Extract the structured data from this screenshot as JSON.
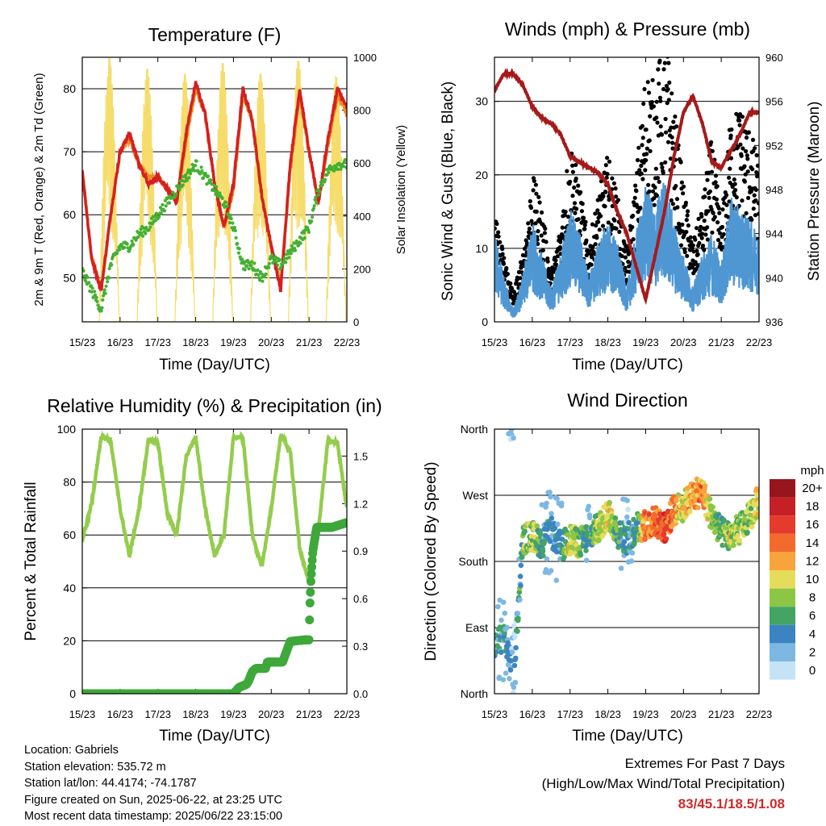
{
  "colors": {
    "temp_red": "#d42020",
    "temp_orange": "#f08c24",
    "dew_green": "#44b032",
    "solar_yellow": "#f6dc6a",
    "gust_black": "#000000",
    "wind_blue": "#4f97d3",
    "pressure_maroon": "#a61a1a",
    "rh_green": "#94cc4c",
    "precip_green": "#3ea83a",
    "extremes_red": "#cc2a2a"
  },
  "time_ticks": [
    "15/23",
    "16/23",
    "17/23",
    "18/23",
    "19/23",
    "20/23",
    "21/23",
    "22/23"
  ],
  "chart_data": [
    {
      "id": "temperature",
      "type": "line",
      "title": "Temperature (F)",
      "xlabel": "Time (Day/UTC)",
      "ylabel": "2m & 9m T (Red, Orange) & 2m Td (Green)",
      "y2label": "Solar Insolation (Yellow)",
      "x_range_days": [
        0,
        7
      ],
      "ylim": [
        43,
        85
      ],
      "y_ticks": [
        50,
        60,
        70,
        80
      ],
      "y2lim": [
        0,
        1000
      ],
      "y2_ticks": [
        0,
        200,
        400,
        600,
        800,
        1000
      ],
      "grid": "horizontal",
      "x": [
        0,
        0.25,
        0.5,
        0.75,
        1,
        1.25,
        1.5,
        1.75,
        2,
        2.25,
        2.5,
        2.75,
        3,
        3.25,
        3.5,
        3.75,
        4,
        4.25,
        4.5,
        4.75,
        5,
        5.25,
        5.5,
        5.75,
        6,
        6.25,
        6.5,
        6.75,
        7
      ],
      "series": [
        {
          "name": "2m T",
          "values": [
            67,
            53,
            48,
            60,
            70,
            73,
            68,
            65,
            66,
            64,
            62,
            73,
            81,
            76,
            65,
            58,
            65,
            80,
            75,
            63,
            55,
            48,
            68,
            80,
            70,
            62,
            72,
            80,
            77
          ]
        },
        {
          "name": "9m T",
          "values": [
            67,
            53,
            48,
            60,
            70,
            72,
            68,
            66,
            66,
            64,
            62,
            72,
            80,
            76,
            65,
            58,
            64,
            79,
            75,
            63,
            55,
            49,
            67,
            79,
            70,
            62,
            71,
            79,
            76
          ]
        },
        {
          "name": "2m Td",
          "values": [
            51,
            48,
            45,
            52,
            55,
            55,
            57,
            58,
            60,
            62,
            64,
            66,
            68,
            66,
            64,
            62,
            58,
            52,
            52,
            50,
            53,
            52,
            54,
            56,
            58,
            64,
            67,
            68,
            68
          ]
        },
        {
          "name": "Solar Insolation",
          "daily_peak": [
            1000,
            960,
            940,
            980,
            940,
            990,
            930,
            980
          ]
        }
      ]
    },
    {
      "id": "winds",
      "type": "scatter",
      "title": "Winds (mph) & Pressure (mb)",
      "xlabel": "Time (Day/UTC)",
      "ylabel": "Sonic Wind & Gust (Blue, Black)",
      "y2label": "Station Pressure (Maroon)",
      "ylim": [
        0,
        36
      ],
      "y_ticks": [
        0,
        10,
        20,
        30
      ],
      "y2lim": [
        936,
        960
      ],
      "y2_ticks": [
        936,
        940,
        944,
        948,
        952,
        956,
        960
      ],
      "grid": "horizontal",
      "x": [
        0,
        0.25,
        0.5,
        0.75,
        1,
        1.25,
        1.5,
        1.75,
        2,
        2.25,
        2.5,
        2.75,
        3,
        3.25,
        3.5,
        3.75,
        4,
        4.25,
        4.5,
        4.75,
        5,
        5.25,
        5.5,
        5.75,
        6,
        6.25,
        6.5,
        6.75,
        7
      ],
      "series": [
        {
          "name": "Gust",
          "values": [
            11,
            7,
            3,
            7,
            15,
            12,
            5,
            10,
            19,
            14,
            8,
            13,
            17,
            13,
            7,
            15,
            26,
            24,
            30,
            22,
            14,
            8,
            12,
            19,
            10,
            21,
            22,
            20,
            16
          ]
        },
        {
          "name": "Wind",
          "values": [
            8,
            4,
            1,
            4,
            9,
            6,
            3,
            6,
            10,
            8,
            4,
            7,
            9,
            7,
            3,
            8,
            12,
            10,
            13,
            9,
            6,
            3,
            6,
            8,
            5,
            11,
            10,
            9,
            8
          ]
        },
        {
          "name": "Pressure",
          "values": [
            957,
            958.5,
            958.5,
            957.5,
            955.5,
            954.5,
            954,
            953,
            951,
            950.5,
            950,
            949.5,
            948.5,
            946,
            944,
            941,
            938,
            942,
            946,
            951,
            955,
            956.5,
            954,
            950.5,
            950,
            951.5,
            953,
            955,
            955
          ]
        }
      ]
    },
    {
      "id": "humidity",
      "type": "line",
      "title": "Relative Humidity (%) & Precipitation (in)",
      "xlabel": "Time (Day/UTC)",
      "ylabel": "Percent & Total Rainfall",
      "ylim": [
        0,
        100
      ],
      "y_ticks": [
        0,
        20,
        40,
        60,
        80,
        100
      ],
      "y2lim": [
        0,
        1.67
      ],
      "y2_ticks": [
        0.0,
        0.3,
        0.6,
        0.9,
        1.2,
        1.5
      ],
      "grid": "horizontal",
      "x": [
        0,
        0.25,
        0.5,
        0.75,
        1,
        1.25,
        1.5,
        1.75,
        2,
        2.25,
        2.5,
        2.75,
        3,
        3.25,
        3.5,
        3.75,
        4,
        4.25,
        4.5,
        4.75,
        5,
        5.25,
        5.5,
        5.75,
        6,
        6.25,
        6.5,
        6.75,
        7
      ],
      "series": [
        {
          "name": "RH",
          "values": [
            58,
            72,
            97,
            96,
            70,
            52,
            70,
            96,
            95,
            68,
            60,
            90,
            97,
            70,
            52,
            60,
            97,
            97,
            60,
            48,
            70,
            98,
            92,
            55,
            42,
            62,
            96,
            95,
            70
          ]
        },
        {
          "name": "Total Rainfall",
          "x": [
            0,
            4,
            4.15,
            4.35,
            4.4,
            4.5,
            4.6,
            4.85,
            4.9,
            5.0,
            5.3,
            5.5,
            5.9,
            6.0,
            6.02,
            6.05,
            6.1,
            6.2,
            6.6,
            7.0
          ],
          "values": [
            0,
            0,
            0.04,
            0.06,
            0.08,
            0.14,
            0.16,
            0.16,
            0.2,
            0.2,
            0.2,
            0.33,
            0.34,
            0.34,
            0.55,
            0.72,
            0.9,
            1.05,
            1.05,
            1.08
          ]
        }
      ]
    },
    {
      "id": "direction",
      "type": "scatter",
      "title": "Wind Direction",
      "xlabel": "Time (Day/UTC)",
      "ylabel": "Direction (Colored By Speed)",
      "y_labels": [
        "North",
        "East",
        "South",
        "West",
        "North"
      ],
      "colorbar_title": "mph",
      "colorbar_labels": [
        "20+",
        "18",
        "16",
        "14",
        "12",
        "10",
        "8",
        "6",
        "4",
        "2",
        "0"
      ],
      "colorbar_colors": [
        "#97151c",
        "#c62027",
        "#e43b2c",
        "#f26b2d",
        "#f8a43c",
        "#e6dc5c",
        "#8cc645",
        "#43a464",
        "#3b84c2",
        "#7db8e2",
        "#c4e4f6"
      ],
      "x": [
        0,
        0.25,
        0.5,
        0.75,
        1,
        1.25,
        1.5,
        1.75,
        2,
        2.25,
        2.5,
        2.75,
        3,
        3.25,
        3.5,
        3.75,
        4,
        4.25,
        4.5,
        4.75,
        5,
        5.25,
        5.5,
        5.75,
        6,
        6.25,
        6.5,
        6.75,
        7
      ],
      "direction_deg": [
        60,
        80,
        20,
        210,
        215,
        205,
        220,
        200,
        210,
        205,
        215,
        225,
        245,
        220,
        210,
        225,
        230,
        235,
        225,
        250,
        255,
        270,
        275,
        240,
        220,
        215,
        225,
        240,
        265
      ],
      "speed_mph": [
        4,
        4,
        1,
        7,
        9,
        5,
        3,
        4,
        10,
        7,
        4,
        9,
        11,
        6,
        3,
        5,
        14,
        13,
        16,
        12,
        10,
        12,
        13,
        8,
        6,
        9,
        8,
        8,
        10
      ]
    }
  ],
  "info": {
    "location": "Location: Gabriels",
    "elevation": "Station elevation: 535.72 m",
    "latlon": "Station lat/lon: 44.4174; -74.1787",
    "created": "Figure created on Sun, 2025-06-22, at 23:25 UTC",
    "latest": "Most recent data timestamp: 2025/06/22 23:15:00"
  },
  "extremes": {
    "title": "Extremes For Past 7 Days",
    "subtitle": "(High/Low/Max Wind/Total Precipitation)",
    "values": "83/45.1/18.5/1.08"
  }
}
